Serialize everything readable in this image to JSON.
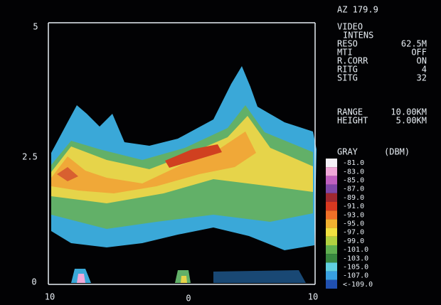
{
  "header": {
    "azimuth": "AZ 179.9"
  },
  "axes": {
    "y_labels": [
      "5",
      "2.5",
      "0"
    ],
    "x_labels": [
      "10",
      "0",
      "10"
    ]
  },
  "info": {
    "mode": [
      "VIDEO",
      "INTENS"
    ],
    "settings": [
      {
        "key": "RESO",
        "value": "62.5M"
      },
      {
        "key": "MTI",
        "value": "OFF"
      },
      {
        "key": "R.CORR",
        "value": "ON"
      },
      {
        "key": "RITG",
        "value": "4"
      },
      {
        "key": "SITG",
        "value": "32"
      }
    ],
    "extent": [
      {
        "key": "RANGE",
        "value": "10.00KM"
      },
      {
        "key": "HEIGHT",
        "value": "5.00KM"
      }
    ]
  },
  "scale": {
    "title": "GRAY",
    "unit": "(DBM)",
    "entries": [
      {
        "label": "-81.0",
        "color": "#f4f0f6"
      },
      {
        "label": "-83.0",
        "color": "#f0a8d8"
      },
      {
        "label": "-85.0",
        "color": "#c060c0"
      },
      {
        "label": "-87.0",
        "color": "#8048a8"
      },
      {
        "label": "-89.0",
        "color": "#a02830"
      },
      {
        "label": "-91.0",
        "color": "#d83820"
      },
      {
        "label": "-93.0",
        "color": "#f07028"
      },
      {
        "label": "-95.0",
        "color": "#f0b030"
      },
      {
        "label": "-97.0",
        "color": "#f0e040"
      },
      {
        "label": "-99.0",
        "color": "#b0d040"
      },
      {
        "label": "-101.0",
        "color": "#60b050"
      },
      {
        "label": "-103.0",
        "color": "#388840"
      },
      {
        "label": "-105.0",
        "color": "#60d0e0"
      },
      {
        "label": "-107.0",
        "color": "#38a0e0"
      },
      {
        "label": "<-109.0",
        "color": "#2050b0"
      }
    ]
  }
}
